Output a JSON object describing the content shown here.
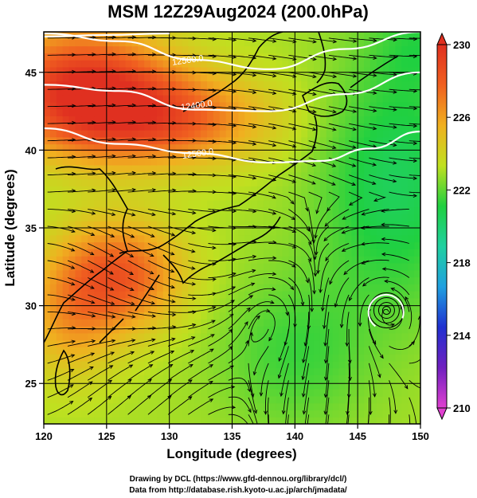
{
  "title": "MSM 12Z29Aug2024 (200.0hPa)",
  "chart_data": {
    "type": "heatmap",
    "xlabel": "Longitude (degrees)",
    "ylabel": "Latitude  (degrees)",
    "xlim": [
      120,
      150
    ],
    "ylim": [
      22.4,
      47.6
    ],
    "x_ticks": [
      120,
      125,
      130,
      135,
      140,
      145,
      150
    ],
    "y_ticks": [
      25,
      30,
      35,
      40,
      45
    ],
    "grid": true,
    "colorbar": {
      "min": 210,
      "max": 230,
      "ticks": [
        210,
        214,
        218,
        222,
        226,
        230
      ],
      "stops": [
        "#e040d0",
        "#7020c0",
        "#2030d0",
        "#20a0e0",
        "#20d0a0",
        "#20d040",
        "#c0e020",
        "#f0b020",
        "#f06020",
        "#e03020"
      ]
    },
    "contours": [
      {
        "label": "12500.0",
        "lat_at_lon": [
          [
            120,
            47.3
          ],
          [
            125,
            47.4
          ],
          [
            130,
            47.5
          ]
        ]
      },
      {
        "label": "12400.0",
        "lat_at_lon": [
          [
            120,
            44.2
          ],
          [
            126,
            43.8
          ],
          [
            132,
            42.6
          ],
          [
            138,
            42.5
          ],
          [
            144,
            43.6
          ],
          [
            150,
            45.0
          ]
        ]
      },
      {
        "label": "12500.0",
        "lat_at_lon": [
          [
            120,
            47.5
          ],
          [
            126,
            47.0
          ],
          [
            132,
            45.8
          ],
          [
            138,
            45.2
          ],
          [
            144,
            46.5
          ],
          [
            150,
            47.6
          ]
        ]
      },
      {
        "label": "12500.0",
        "lat_at_lon": [
          [
            120,
            41.4
          ],
          [
            126,
            40.4
          ],
          [
            132,
            39.8
          ],
          [
            138,
            39.2
          ],
          [
            142,
            39.3
          ],
          [
            146,
            40.1
          ],
          [
            150,
            41.2
          ]
        ]
      }
    ],
    "contour_labels": [
      {
        "text": "12500.0",
        "lon": 131.5,
        "lat": 45.6
      },
      {
        "text": "12400.0",
        "lon": 132.2,
        "lat": 42.7
      },
      {
        "text": "12500.0",
        "lon": 132.3,
        "lat": 39.6
      }
    ],
    "typhoon_center": {
      "lon": 147.3,
      "lat": 29.7
    }
  },
  "credits": {
    "line1": "Drawing by DCL (https://www.gfd-dennou.org/library/dcl/)",
    "line2": "Data from http://database.rish.kyoto-u.ac.jp/arch/jmadata/"
  }
}
